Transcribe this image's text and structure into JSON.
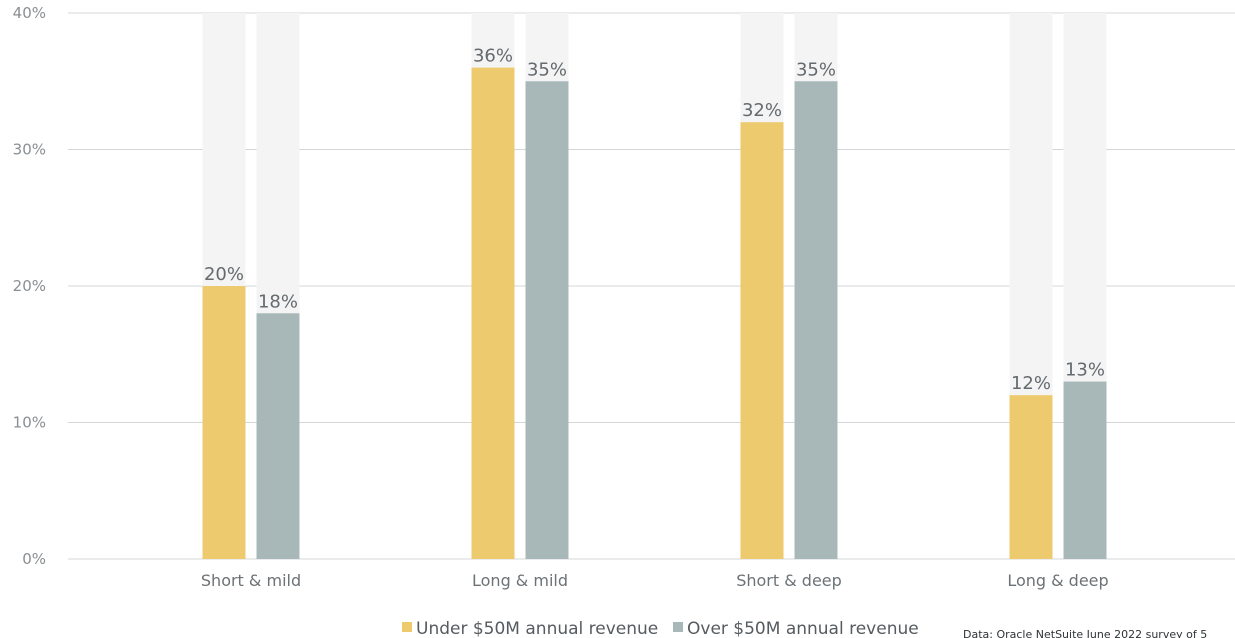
{
  "chart_data": {
    "type": "bar",
    "title": "",
    "xlabel": "",
    "ylabel": "",
    "categories": [
      "Short & mild",
      "Long & mild",
      "Short & deep",
      "Long & deep"
    ],
    "series": [
      {
        "name": "Under $50M annual revenue",
        "values": [
          20,
          36,
          32,
          12
        ],
        "color": "#edca6d"
      },
      {
        "name": "Over $50M annual revenue",
        "values": [
          18,
          35,
          35,
          13
        ],
        "color": "#a8b8b9"
      }
    ],
    "ylim": [
      0,
      40
    ],
    "yticks": [
      0,
      10,
      20,
      30,
      40
    ],
    "value_suffix": "%",
    "grid": true,
    "background_bars": true,
    "legend_position": "bottom-center",
    "source_note": "Data: Oracle NetSuite June 2022 survey of 5"
  },
  "colors": {
    "grid": "#d4d7d9",
    "background_bar": "#f4f4f4"
  }
}
